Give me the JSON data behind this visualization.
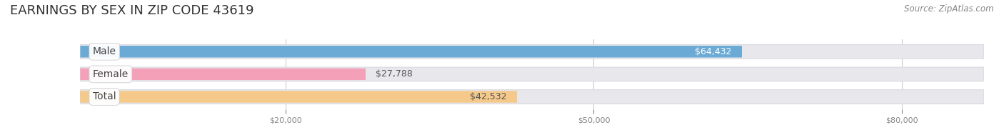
{
  "title": "EARNINGS BY SEX IN ZIP CODE 43619",
  "source": "Source: ZipAtlas.com",
  "categories": [
    "Male",
    "Female",
    "Total"
  ],
  "values": [
    64432,
    27788,
    42532
  ],
  "bar_colors": [
    "#6aaad4",
    "#f4a0b8",
    "#f5c98a"
  ],
  "track_color": "#e8e8ec",
  "track_outline": "#d8d8e0",
  "value_labels": [
    "$64,432",
    "$27,788",
    "$42,532"
  ],
  "value_label_colors": [
    "white",
    "#555555",
    "#555555"
  ],
  "x_ticks": [
    20000,
    50000,
    80000
  ],
  "x_tick_labels": [
    "$20,000",
    "$50,000",
    "$80,000"
  ],
  "xmin": 0,
  "xmax": 88000,
  "background_color": "#ffffff",
  "title_fontsize": 13,
  "source_fontsize": 8.5,
  "label_fontsize": 10,
  "value_fontsize": 9,
  "bar_height": 0.52,
  "fig_width": 14.06,
  "fig_height": 1.96,
  "grid_color": "#cccccc",
  "tick_color": "#888888"
}
